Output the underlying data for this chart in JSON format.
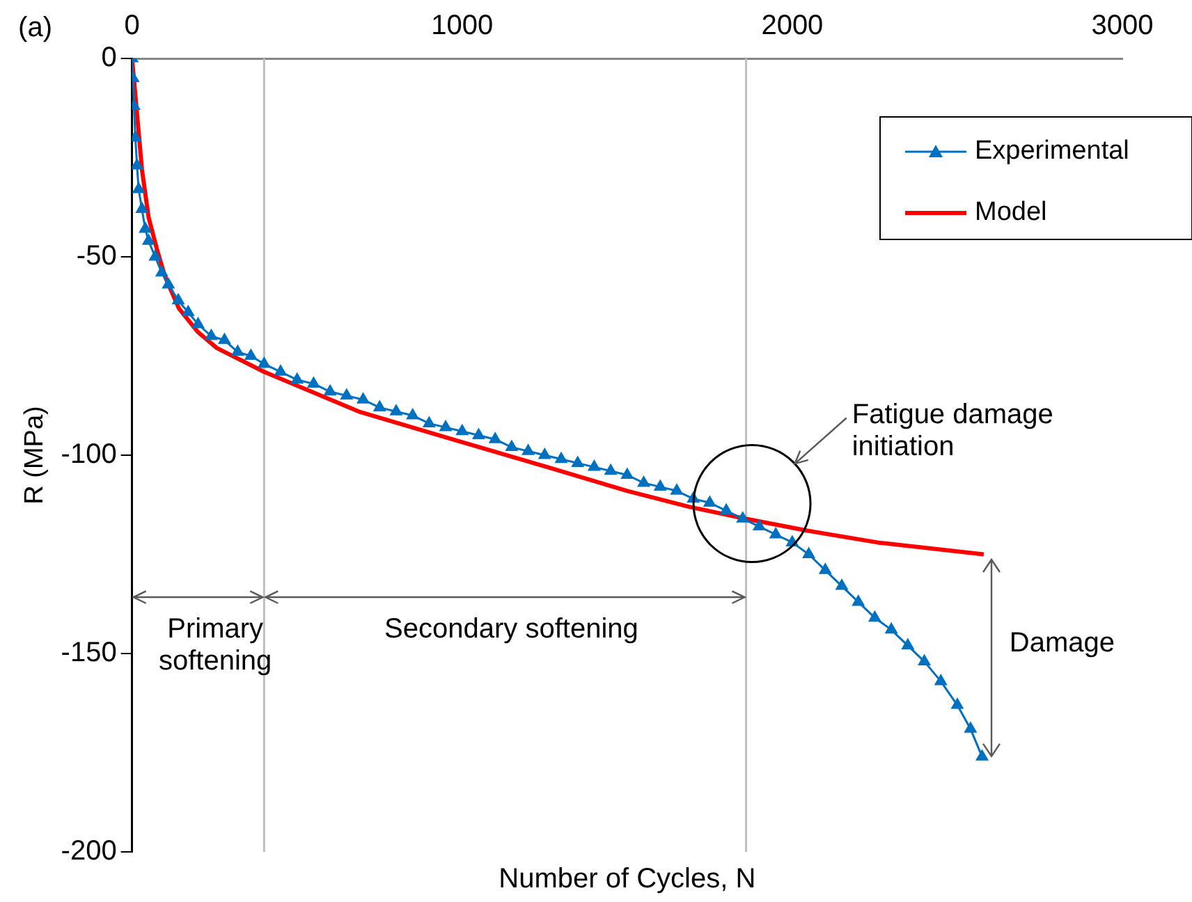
{
  "chart_data": {
    "type": "line",
    "xlabel": "Number of Cycles, N",
    "ylabel": "R (MPa)",
    "xlim": [
      0,
      3000
    ],
    "xticks": [
      0,
      1000,
      2000,
      3000
    ],
    "ylim": [
      -200,
      0
    ],
    "yticks": [
      0,
      -50,
      -100,
      -150,
      -200
    ],
    "grid": false,
    "legend": "top right",
    "series": [
      {
        "name": "Experimental",
        "color": "#0070c0",
        "marker": "triangle",
        "x": [
          0,
          3,
          6,
          10,
          15,
          20,
          30,
          40,
          50,
          70,
          90,
          110,
          140,
          170,
          200,
          240,
          280,
          320,
          360,
          400,
          450,
          500,
          550,
          600,
          650,
          700,
          750,
          800,
          850,
          900,
          950,
          1000,
          1050,
          1100,
          1150,
          1200,
          1250,
          1300,
          1350,
          1400,
          1450,
          1500,
          1550,
          1600,
          1650,
          1700,
          1750,
          1800,
          1850,
          1900,
          1950,
          2000,
          2050,
          2100,
          2150,
          2200,
          2250,
          2300,
          2350,
          2400,
          2450,
          2500,
          2540,
          2575
        ],
        "values": [
          0,
          -5,
          -12,
          -20,
          -27,
          -33,
          -38,
          -43,
          -46,
          -50,
          -54,
          -57,
          -61,
          -64,
          -67,
          -70,
          -71,
          -74,
          -75,
          -77,
          -79,
          -81,
          -82,
          -84,
          -85,
          -86,
          -88,
          -89,
          -90,
          -92,
          -93,
          -94,
          -95,
          -96,
          -98,
          -99,
          -100,
          -101,
          -102,
          -103,
          -104,
          -105,
          -107,
          -108,
          -109,
          -111,
          -112,
          -114,
          -116,
          -118,
          -120,
          -122,
          -125,
          -129,
          -133,
          -137,
          -141,
          -144,
          -148,
          -152,
          -157,
          -163,
          -169,
          -176
        ]
      },
      {
        "name": "Model",
        "color": "#ff0000",
        "marker": "none",
        "x": [
          0,
          13,
          30,
          50,
          75,
          100,
          142,
          200,
          257,
          400,
          687,
          970,
          1258,
          1500,
          1687,
          1858,
          2043,
          2258,
          2580
        ],
        "values": [
          0,
          -12,
          -28,
          -40,
          -48,
          -55,
          -63,
          -69,
          -73,
          -79,
          -89,
          -96,
          -103,
          -109,
          -113,
          -116,
          -119,
          -122,
          -125
        ]
      }
    ],
    "ref_lines": [
      {
        "axis": "x",
        "value": 400,
        "color": "#bfbfbf"
      },
      {
        "axis": "x",
        "value": 1860,
        "color": "#bfbfbf"
      }
    ],
    "annotations": [
      "(a)",
      "Primary softening",
      "Secondary softening",
      "Fatigue damage initiation",
      "Damage"
    ]
  }
}
